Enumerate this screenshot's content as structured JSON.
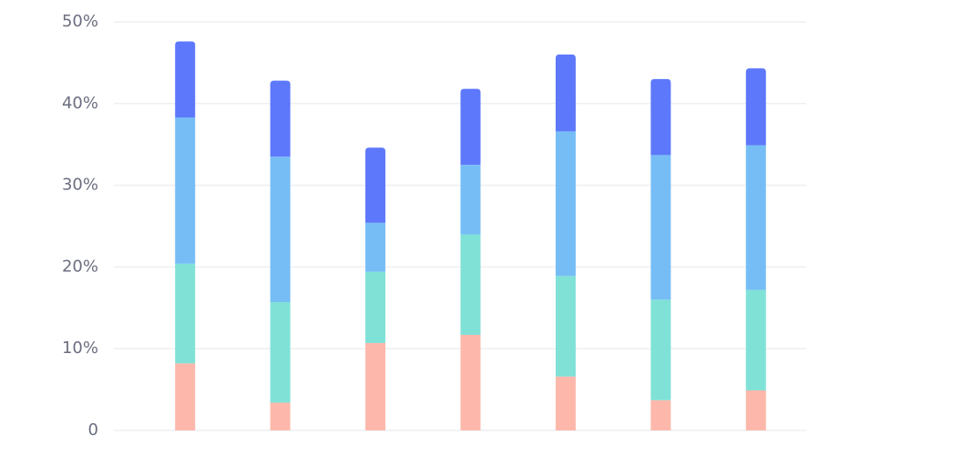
{
  "chart_data": {
    "type": "stacked_bar",
    "categories": [
      null,
      null,
      null,
      null,
      null,
      null,
      null
    ],
    "series": [
      {
        "color": "#fdb8ab",
        "values": [
          8.2,
          3.4,
          10.7,
          11.7,
          6.6,
          3.7,
          4.9
        ]
      },
      {
        "color": "#80e1d7",
        "values": [
          12.2,
          12.3,
          8.7,
          12.3,
          12.3,
          12.3,
          12.3
        ]
      },
      {
        "color": "#76bdf5",
        "values": [
          17.9,
          17.8,
          6.0,
          8.5,
          17.7,
          17.7,
          17.7
        ]
      },
      {
        "color": "#5d78fb",
        "values": [
          9.3,
          9.3,
          9.2,
          9.3,
          9.4,
          9.3,
          9.4
        ]
      }
    ],
    "ylim": [
      0,
      50
    ],
    "yticks": [
      0,
      {
        "value": 10,
        "label": "10%"
      },
      {
        "value": 20,
        "label": "20%"
      },
      {
        "value": 30,
        "label": "30%"
      },
      {
        "value": 40,
        "label": "40%"
      },
      {
        "value": 50,
        "label": "50%"
      }
    ],
    "grid": true
  }
}
